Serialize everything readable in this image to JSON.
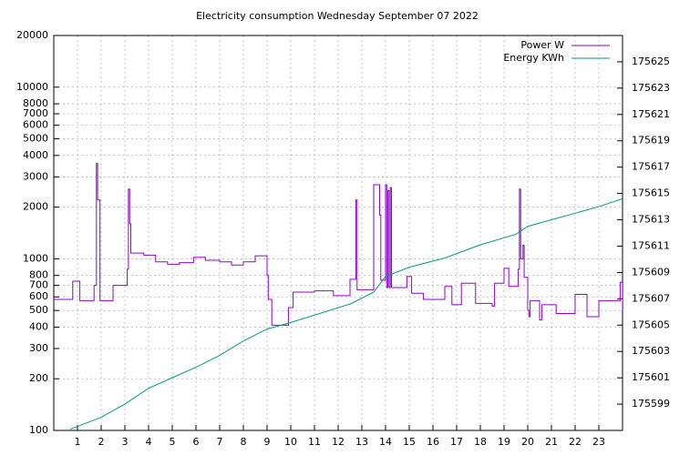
{
  "chart_data": {
    "type": "line",
    "title": "Electricity consumption Wednesday September 07 2022",
    "xlim": [
      0,
      24
    ],
    "xticks": [
      1,
      2,
      3,
      4,
      5,
      6,
      7,
      8,
      9,
      10,
      11,
      12,
      13,
      14,
      15,
      16,
      17,
      18,
      19,
      20,
      21,
      22,
      23
    ],
    "ylim": [
      100,
      20000
    ],
    "ylog": true,
    "yticks": [
      100,
      200,
      300,
      400,
      500,
      600,
      700,
      800,
      1000,
      2000,
      3000,
      4000,
      5000,
      6000,
      7000,
      8000,
      10000,
      20000
    ],
    "y2lim": [
      175597,
      175627
    ],
    "y2ticks": [
      175599,
      175601,
      175603,
      175605,
      175607,
      175609,
      175611,
      175613,
      175615,
      175617,
      175619,
      175621,
      175623,
      175625
    ],
    "grid": true,
    "legend": "top-right",
    "series": [
      {
        "name": "Power W",
        "color": "#9400d3",
        "steps": true,
        "x": [
          0,
          0.8,
          1.1,
          1.7,
          1.8,
          1.85,
          1.95,
          2.5,
          3.1,
          3.15,
          3.2,
          3.25,
          3.8,
          4.3,
          4.8,
          5.3,
          5.9,
          6.4,
          7,
          7.5,
          8,
          8.5,
          9,
          9.05,
          9.2,
          9.9,
          10.1,
          11,
          11.8,
          12.5,
          12.75,
          12.8,
          13.5,
          13.75,
          13.8,
          14,
          14.05,
          14.1,
          14.15,
          14.2,
          14.25,
          14.9,
          15.1,
          15.6,
          16.5,
          16.8,
          17.2,
          17.8,
          18.5,
          18.6,
          19,
          19.2,
          19.6,
          19.65,
          19.7,
          19.8,
          19.85,
          20,
          20.05,
          20.1,
          20.5,
          20.6,
          21.2,
          22,
          22.5,
          23,
          23.9,
          24
        ],
        "values": [
          580,
          740,
          570,
          700,
          3600,
          2200,
          570,
          700,
          870,
          2550,
          1600,
          1080,
          1050,
          960,
          930,
          950,
          1020,
          980,
          960,
          920,
          960,
          1040,
          800,
          580,
          410,
          520,
          640,
          650,
          610,
          760,
          2200,
          660,
          2700,
          1800,
          750,
          2700,
          680,
          2500,
          680,
          2600,
          680,
          790,
          630,
          580,
          690,
          540,
          720,
          550,
          530,
          720,
          880,
          690,
          870,
          2550,
          1000,
          1200,
          780,
          500,
          460,
          570,
          440,
          540,
          480,
          620,
          460,
          570,
          730,
          500
        ]
      },
      {
        "name": "Energy KWh",
        "color": "#009e73",
        "axis": "y2",
        "x": [
          0.7,
          2,
          3,
          4,
          5,
          6,
          7,
          8,
          9,
          10,
          12.5,
          13.5,
          14,
          15,
          16.5,
          18,
          19.5,
          20,
          21,
          22,
          23,
          24
        ],
        "values": [
          175597.1,
          175598.0,
          175599.0,
          175600.2,
          175601.0,
          175601.8,
          175602.7,
          175603.8,
          175604.7,
          175605.2,
          175606.6,
          175607.5,
          175608.7,
          175609.4,
          175610.1,
          175611.1,
          175611.9,
          175612.5,
          175613.0,
          175613.5,
          175614.0,
          175614.6
        ]
      }
    ]
  }
}
